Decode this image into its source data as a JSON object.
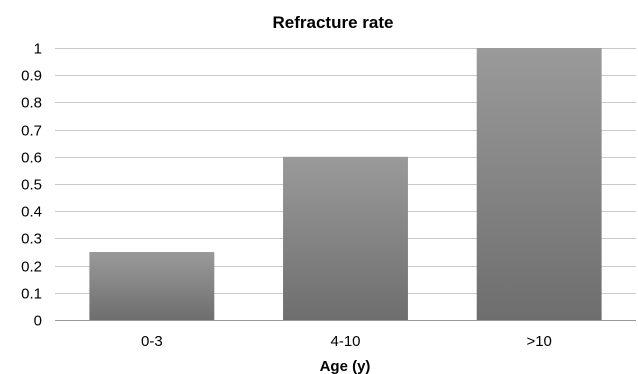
{
  "chart_data": {
    "type": "bar",
    "title": "Refracture rate",
    "xlabel": "Age (y)",
    "ylabel": "",
    "categories": [
      "0-3",
      "4-10",
      ">10"
    ],
    "values": [
      0.25,
      0.6,
      1.0
    ],
    "ylim": [
      0,
      1
    ],
    "yticks": [
      "0",
      "0.1",
      "0.2",
      "0.3",
      "0.4",
      "0.5",
      "0.6",
      "0.7",
      "0.8",
      "0.9",
      "1"
    ],
    "grid": true,
    "bar_color": "#8a8a8a"
  }
}
